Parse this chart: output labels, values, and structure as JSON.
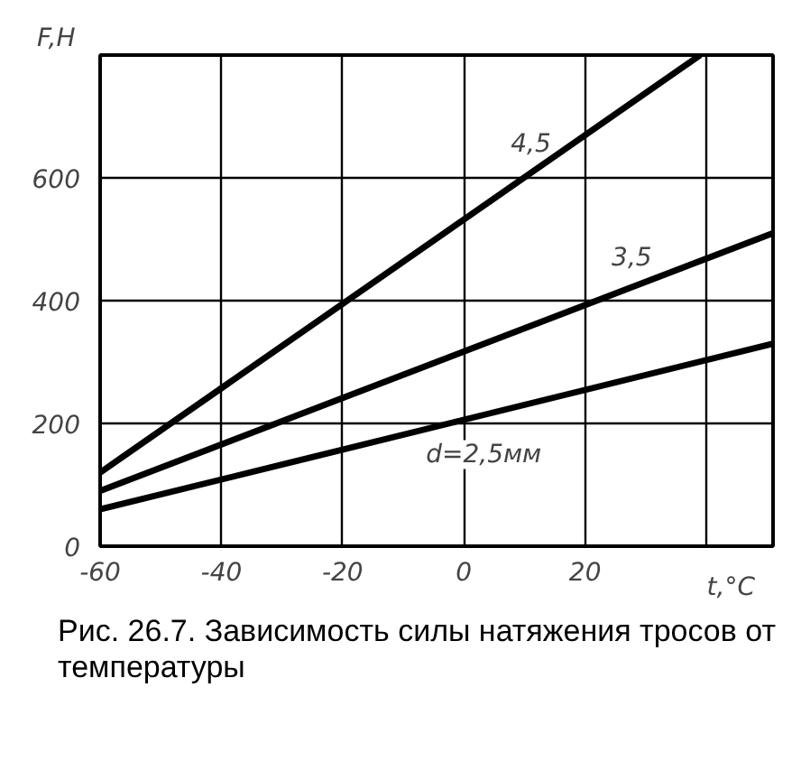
{
  "chart_data": {
    "type": "line",
    "xlabel": "t,°C",
    "ylabel": "F,H",
    "series": [
      {
        "color": "#000000",
        "x": [
          -60,
          51
        ],
        "values": [
          60,
          330
        ]
      },
      {
        "color": "#000000",
        "x": [
          -60,
          51
        ],
        "values": [
          90,
          510
        ]
      },
      {
        "color": "#000000",
        "x": [
          -60,
          39
        ],
        "values": [
          120,
          800
        ]
      }
    ],
    "xlim": [
      -60,
      51
    ],
    "ylim": [
      0,
      800
    ],
    "xticks": [
      -60,
      -40,
      -20,
      0,
      20,
      {
        "value": 40,
        "label": null
      }
    ],
    "yticks": [
      0,
      200,
      400,
      600,
      {
        "value": 800,
        "label": null
      }
    ],
    "grid": true,
    "marker": "none",
    "line_style": "solid",
    "annotations": [
      "d=2,5мм",
      "3,5",
      "4,5",
      "Рис. 26.7. Зависимость силы натяжения тросов от температуры"
    ]
  }
}
